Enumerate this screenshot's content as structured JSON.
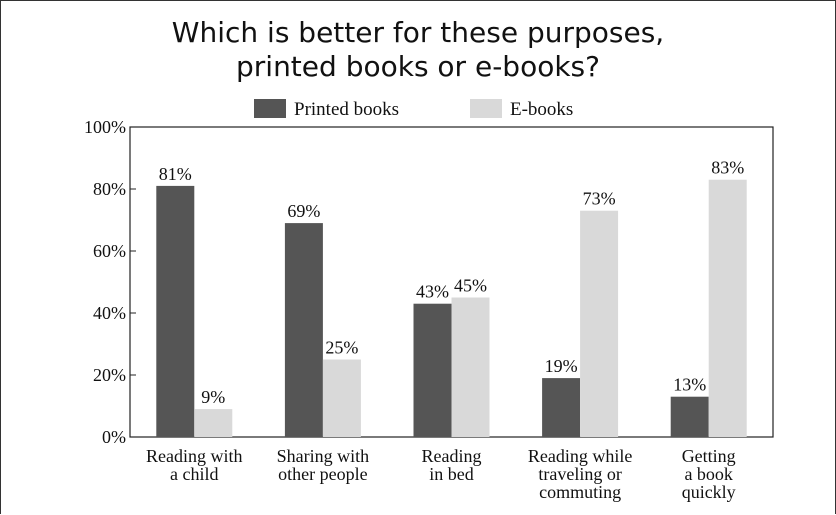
{
  "chart_data": {
    "type": "bar",
    "title_line1": "Which is better for these purposes,",
    "title_line2": "printed books or e-books?",
    "categories": [
      [
        "Reading with",
        "a child"
      ],
      [
        "Sharing with",
        "other people"
      ],
      [
        "Reading",
        "in bed"
      ],
      [
        "Reading while",
        "traveling or",
        "commuting"
      ],
      [
        "Getting",
        "a book",
        "quickly"
      ]
    ],
    "series": [
      {
        "name": "Printed books",
        "color": "#555555",
        "values": [
          81,
          69,
          43,
          19,
          13
        ]
      },
      {
        "name": "E-books",
        "color": "#d9d9d9",
        "values": [
          9,
          25,
          45,
          73,
          83
        ]
      }
    ],
    "yticks": [
      "0%",
      "20%",
      "40%",
      "60%",
      "80%",
      "100%"
    ],
    "ylim": [
      0,
      100
    ],
    "value_suffix": "%",
    "legend_position": "top-center",
    "grid": false
  }
}
